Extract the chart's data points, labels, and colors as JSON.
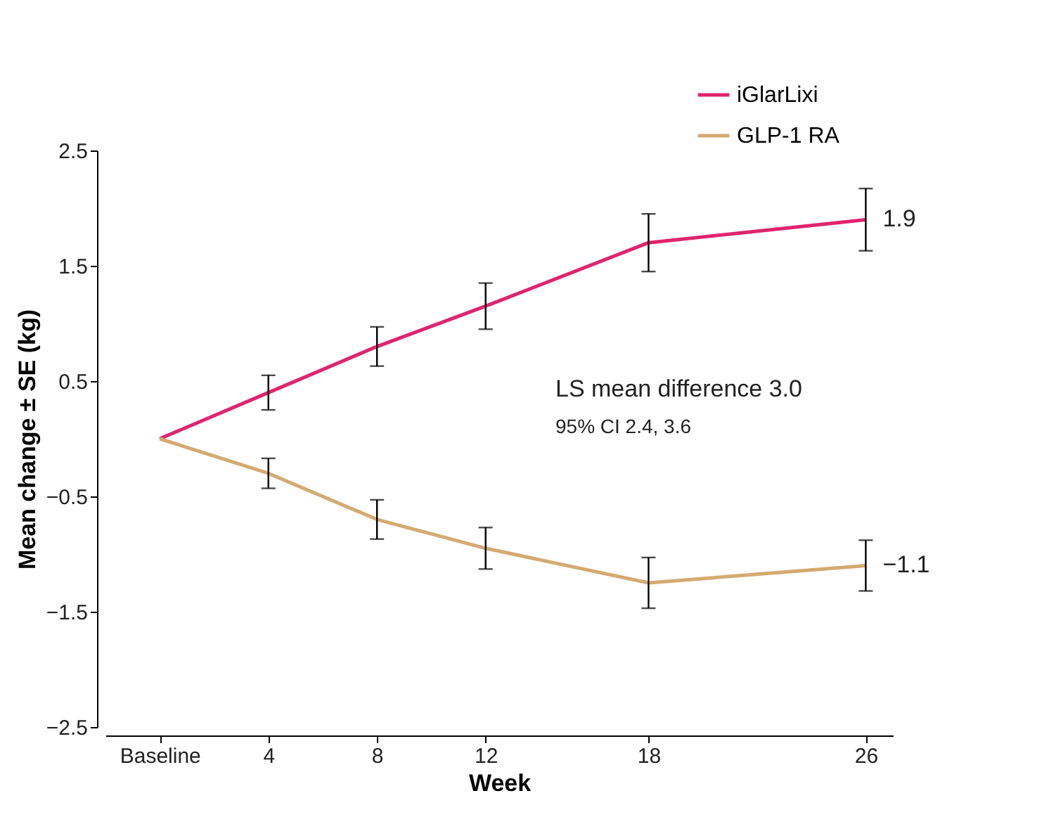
{
  "chart_data": {
    "type": "line",
    "xlabel": "Week",
    "ylabel": "Mean change ± SE (kg)",
    "x": [
      0,
      4,
      8,
      12,
      18,
      26
    ],
    "xlim": [
      -2,
      27
    ],
    "xticks": [
      {
        "value": 0,
        "label": "Baseline"
      },
      4,
      8,
      12,
      18,
      26
    ],
    "ylim": [
      -2.5,
      2.5
    ],
    "yticks": [
      2.5,
      1.5,
      0.5,
      -0.5,
      -1.5,
      -2.5
    ],
    "series": [
      {
        "name": "iGlarLixi",
        "color": "#e0246e",
        "values": [
          0,
          0.4,
          0.8,
          1.15,
          1.7,
          1.9
        ],
        "errors": [
          null,
          0.15,
          0.17,
          0.2,
          0.25,
          0.27
        ]
      },
      {
        "name": "GLP-1 RA",
        "color": "#d4aa70",
        "values": [
          0,
          -0.3,
          -0.7,
          -0.95,
          -1.25,
          -1.1
        ],
        "errors": [
          null,
          0.13,
          0.17,
          0.18,
          0.22,
          0.22
        ]
      }
    ],
    "annotations": [
      {
        "text": "1.9",
        "x": 26,
        "y": 1.9
      },
      {
        "text": "−1.1",
        "x": 26,
        "y": -1.1
      },
      "LS mean difference 3.0",
      "95% CI 2.4, 3.6"
    ],
    "legend": "top right",
    "grid": false,
    "marker": "none",
    "line_style": "solid"
  }
}
